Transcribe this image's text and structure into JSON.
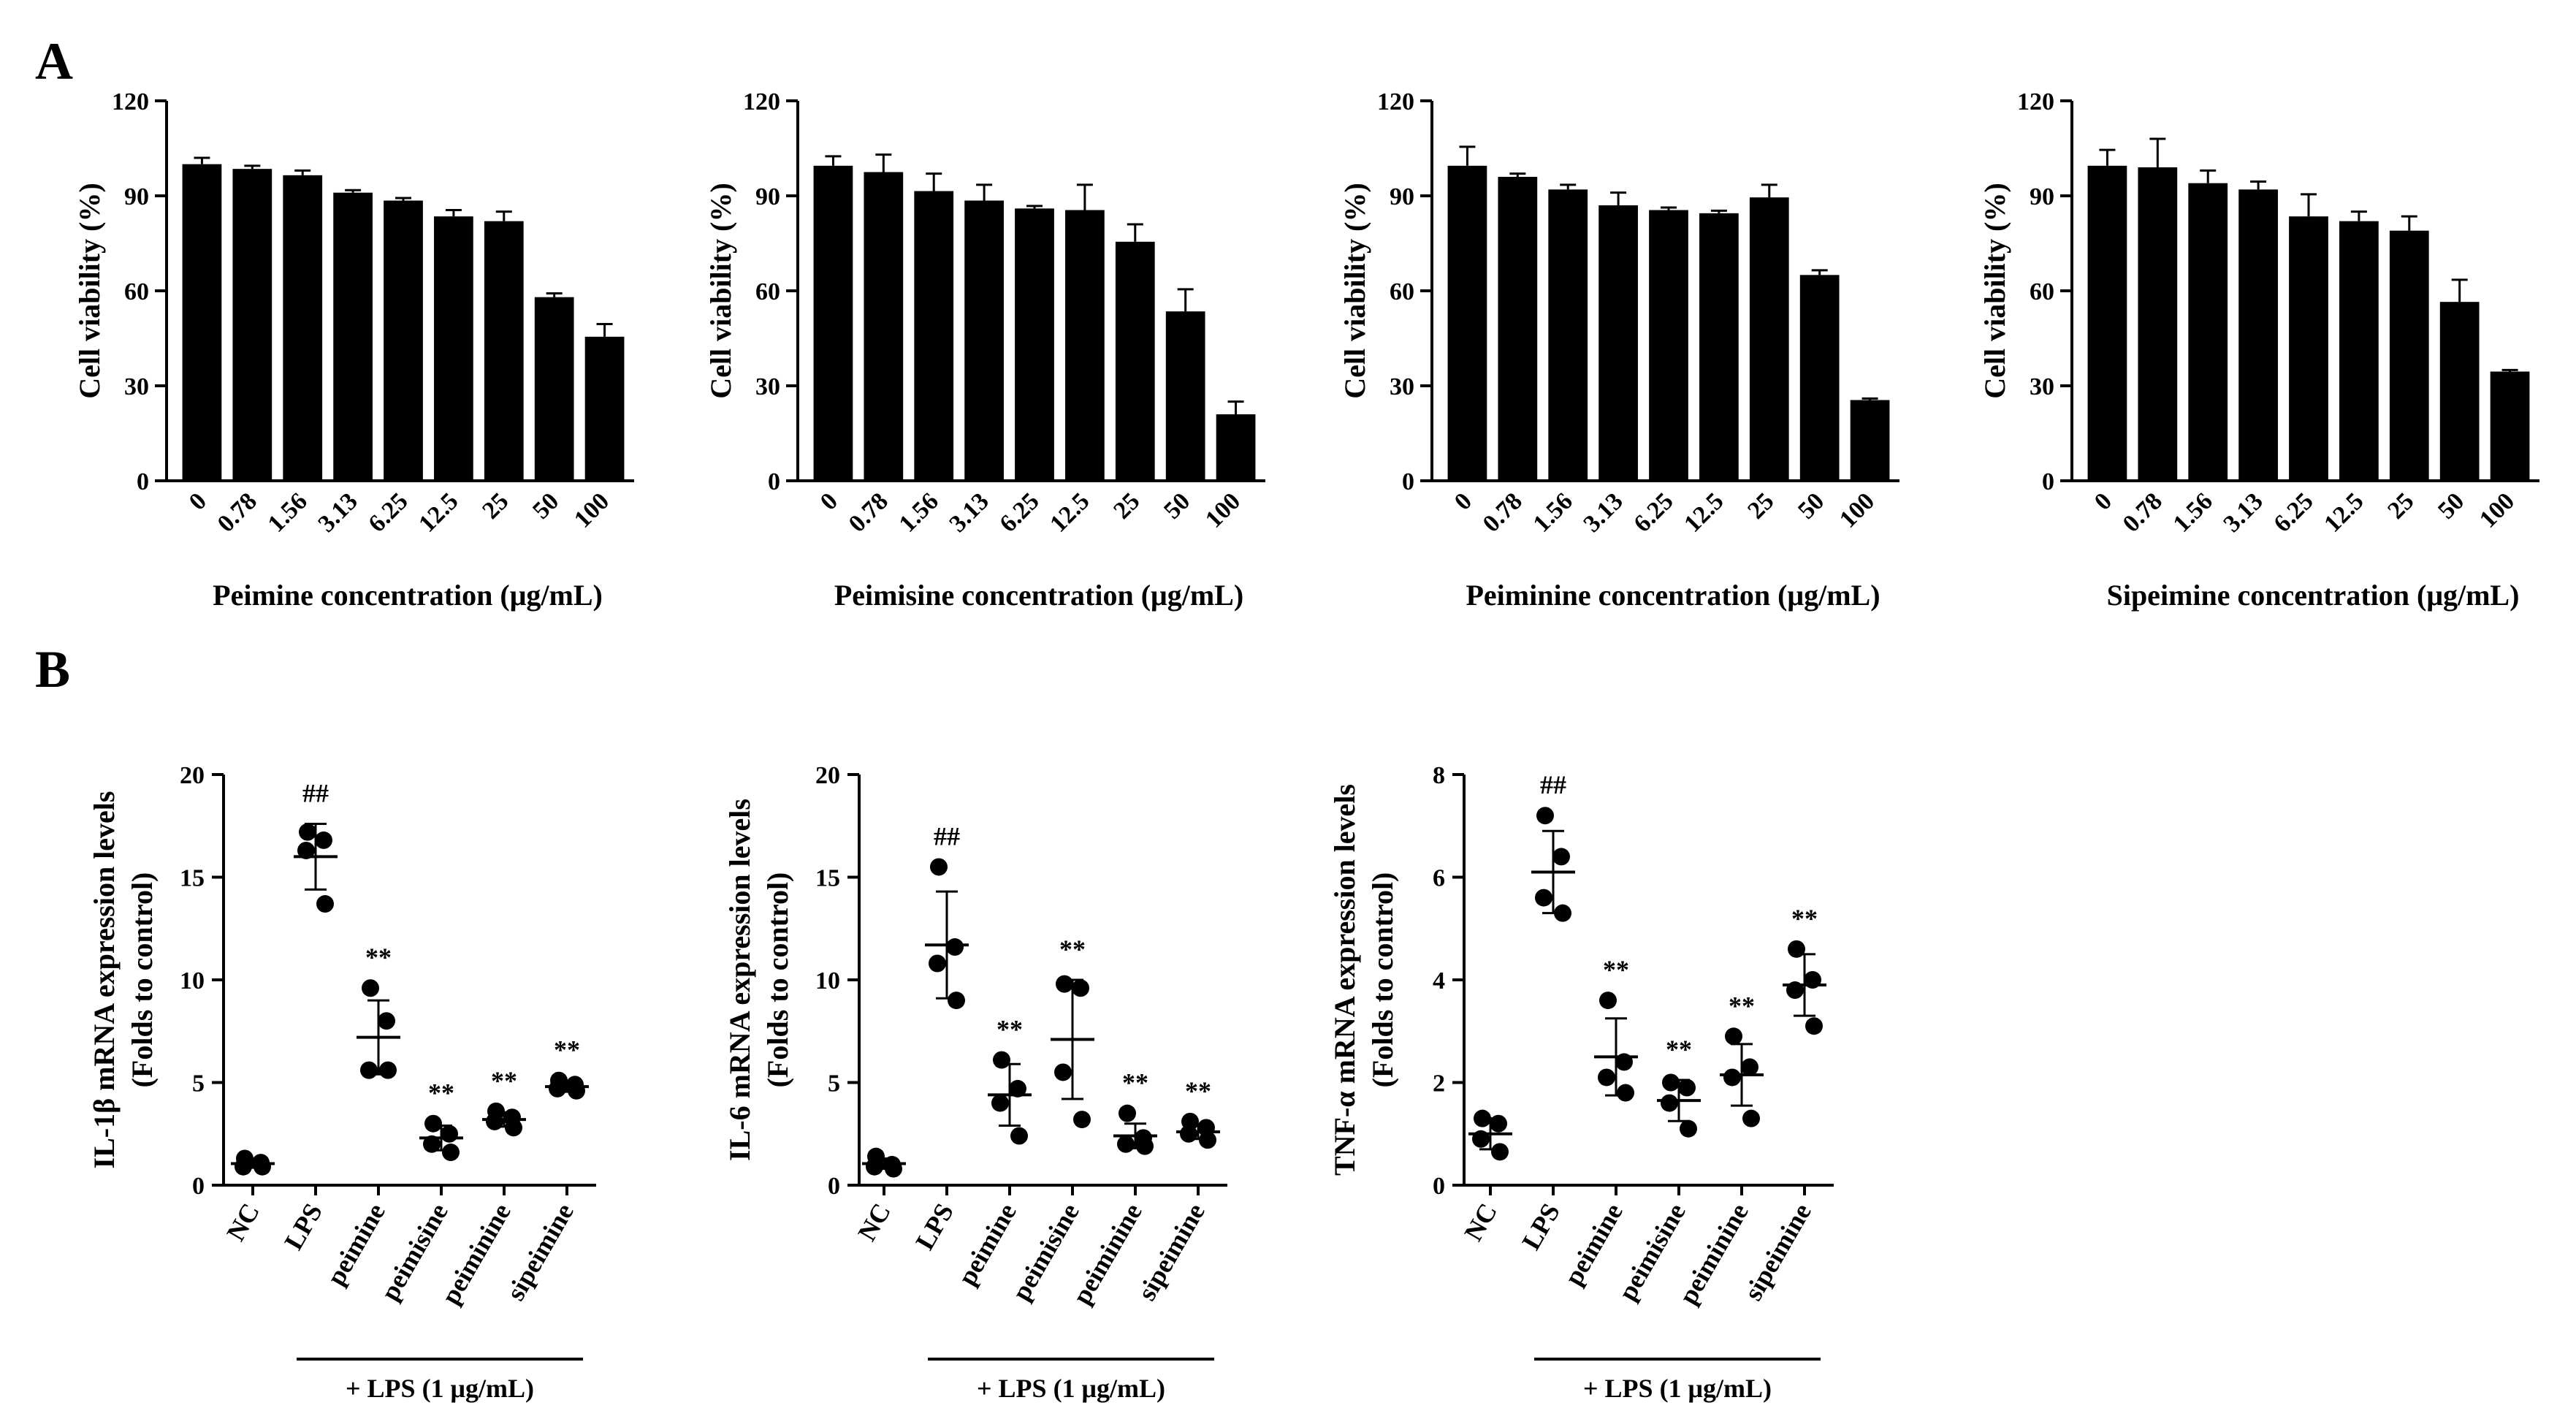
{
  "panels": {
    "a": "A",
    "b": "B"
  },
  "charts_a": [
    {
      "type": "bar",
      "categories": [
        "0",
        "0.78",
        "1.56",
        "3.13",
        "6.25",
        "12.5",
        "25",
        "50",
        "100"
      ],
      "values": [
        100,
        98.5,
        96.5,
        91,
        88.5,
        83.5,
        82,
        58,
        45.5
      ],
      "errors": [
        2,
        1,
        1.5,
        0.8,
        0.8,
        2,
        3,
        1.2,
        4
      ],
      "ylabel": "Cell viability (%)",
      "xlabel": "Peimine concentration (μg/mL)",
      "ylim": [
        0,
        120
      ],
      "yticks": [
        "0",
        "30",
        "60",
        "90",
        "120"
      ]
    },
    {
      "type": "bar",
      "categories": [
        "0",
        "0.78",
        "1.56",
        "3.13",
        "6.25",
        "12.5",
        "25",
        "50",
        "100"
      ],
      "values": [
        99.5,
        97.5,
        91.5,
        88.5,
        86,
        85.5,
        75.5,
        53.5,
        21
      ],
      "errors": [
        3,
        5.5,
        5.5,
        5,
        0.8,
        8,
        5.5,
        7,
        4
      ],
      "ylabel": "Cell viability (%)",
      "xlabel": "Peimisine concentration (μg/mL)",
      "ylim": [
        0,
        120
      ],
      "yticks": [
        "0",
        "30",
        "60",
        "90",
        "120"
      ]
    },
    {
      "type": "bar",
      "categories": [
        "0",
        "0.78",
        "1.56",
        "3.13",
        "6.25",
        "12.5",
        "25",
        "50",
        "100"
      ],
      "values": [
        99.5,
        96,
        92,
        87,
        85.5,
        84.5,
        89.5,
        65,
        25.5
      ],
      "errors": [
        6,
        1,
        1.5,
        4,
        0.8,
        0.8,
        4,
        1.5,
        0.5
      ],
      "ylabel": "Cell viability (%)",
      "xlabel": "Peiminine concentration (μg/mL)",
      "ylim": [
        0,
        120
      ],
      "yticks": [
        "0",
        "30",
        "60",
        "90",
        "120"
      ]
    },
    {
      "type": "bar",
      "categories": [
        "0",
        "0.78",
        "1.56",
        "3.13",
        "6.25",
        "12.5",
        "25",
        "50",
        "100"
      ],
      "values": [
        99.5,
        99,
        94,
        92,
        83.5,
        82,
        79,
        56.5,
        34.5
      ],
      "errors": [
        5,
        9,
        4,
        2.5,
        7,
        3,
        4.5,
        7,
        0.5
      ],
      "ylabel": "Cell viability (%)",
      "xlabel": "Sipeimine concentration (μg/mL)",
      "ylim": [
        0,
        120
      ],
      "yticks": [
        "0",
        "30",
        "60",
        "90",
        "120"
      ]
    }
  ],
  "charts_b": [
    {
      "type": "scatter",
      "categories": [
        "NC",
        "LPS",
        "peimine",
        "peimisine",
        "peiminine",
        "sipeimine"
      ],
      "points": [
        [
          1.3,
          1.1,
          0.9,
          0.9
        ],
        [
          17.2,
          16.8,
          16.3,
          13.7
        ],
        [
          9.6,
          8.0,
          5.6,
          5.6
        ],
        [
          3.0,
          2.5,
          2.0,
          1.6
        ],
        [
          3.6,
          3.3,
          3.1,
          2.8
        ],
        [
          5.1,
          4.9,
          4.7,
          4.6
        ]
      ],
      "mean": [
        1.05,
        16.0,
        7.2,
        2.3,
        3.2,
        4.8
      ],
      "sd": [
        0.2,
        1.6,
        1.8,
        0.6,
        0.35,
        0.25
      ],
      "sig": [
        "",
        "##",
        "**",
        "**",
        "**",
        "**"
      ],
      "ylabel_line1": "IL-1β mRNA expression levels",
      "ylabel_line2": "(Folds to control)",
      "ylim": [
        0,
        20
      ],
      "yticks": [
        "0",
        "5",
        "10",
        "15",
        "20"
      ],
      "group_label": "+ LPS (1 μg/mL)"
    },
    {
      "type": "scatter",
      "categories": [
        "NC",
        "LPS",
        "peimine",
        "peimisine",
        "peiminine",
        "sipeimine"
      ],
      "points": [
        [
          1.4,
          1.0,
          0.9,
          0.8
        ],
        [
          15.5,
          11.6,
          10.8,
          9.0
        ],
        [
          6.1,
          4.7,
          4.0,
          2.4
        ],
        [
          9.8,
          9.6,
          5.5,
          3.2
        ],
        [
          3.5,
          2.3,
          2.0,
          1.9
        ],
        [
          3.1,
          2.8,
          2.5,
          2.2
        ]
      ],
      "mean": [
        1.05,
        11.7,
        4.4,
        7.1,
        2.4,
        2.6
      ],
      "sd": [
        0.25,
        2.6,
        1.5,
        2.9,
        0.6,
        0.35
      ],
      "sig": [
        "",
        "##",
        "**",
        "**",
        "**",
        "**"
      ],
      "ylabel_line1": "IL-6 mRNA expression levels",
      "ylabel_line2": "(Folds to control)",
      "ylim": [
        0,
        20
      ],
      "yticks": [
        "0",
        "5",
        "10",
        "15",
        "20"
      ],
      "group_label": "+ LPS (1 μg/mL)"
    },
    {
      "type": "scatter",
      "categories": [
        "NC",
        "LPS",
        "peimine",
        "peimisine",
        "peiminine",
        "sipeimine"
      ],
      "points": [
        [
          1.3,
          1.2,
          0.9,
          0.65
        ],
        [
          7.2,
          6.4,
          5.6,
          5.3
        ],
        [
          3.6,
          2.4,
          2.1,
          1.8
        ],
        [
          2.0,
          1.9,
          1.6,
          1.1
        ],
        [
          2.9,
          2.3,
          2.1,
          1.3
        ],
        [
          4.6,
          4.0,
          3.8,
          3.1
        ]
      ],
      "mean": [
        1.0,
        6.1,
        2.5,
        1.65,
        2.15,
        3.9
      ],
      "sd": [
        0.3,
        0.8,
        0.75,
        0.4,
        0.6,
        0.6
      ],
      "sig": [
        "",
        "##",
        "**",
        "**",
        "**",
        "**"
      ],
      "ylabel_line1": "TNF-α mRNA expression levels",
      "ylabel_line2": "(Folds to control)",
      "ylim": [
        0,
        8
      ],
      "yticks": [
        "0",
        "2",
        "4",
        "6",
        "8"
      ],
      "group_label": "+ LPS (1 μg/mL)"
    }
  ]
}
